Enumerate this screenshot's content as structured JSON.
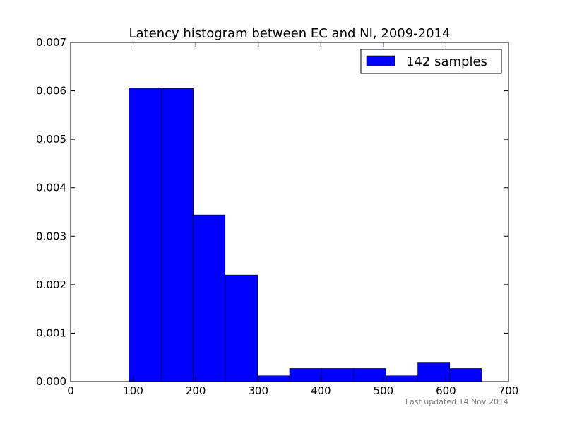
{
  "chart_data": {
    "type": "bar",
    "title": "Latency histogram between EC and NI, 2009-2014",
    "xlabel": "",
    "ylabel": "",
    "xlim": [
      0,
      700
    ],
    "ylim": [
      0,
      0.007
    ],
    "xticks": [
      0,
      100,
      200,
      300,
      400,
      500,
      600,
      700
    ],
    "yticks": [
      0.0,
      0.001,
      0.002,
      0.003,
      0.004,
      0.005,
      0.006,
      0.007
    ],
    "xtick_labels": [
      "0",
      "100",
      "200",
      "300",
      "400",
      "500",
      "600",
      "700"
    ],
    "ytick_labels": [
      "0.000",
      "0.001",
      "0.002",
      "0.003",
      "0.004",
      "0.005",
      "0.006",
      "0.007"
    ],
    "grid": false,
    "legend": {
      "position": "top-right",
      "entries": [
        "142 samples"
      ]
    },
    "bar_color": "#0000ff",
    "bins": [
      {
        "x0": 93,
        "x1": 145,
        "value": 0.00606
      },
      {
        "x0": 145,
        "x1": 196,
        "value": 0.00605
      },
      {
        "x0": 196,
        "x1": 247,
        "value": 0.00344
      },
      {
        "x0": 247,
        "x1": 299,
        "value": 0.0022
      },
      {
        "x0": 299,
        "x1": 350,
        "value": 0.00012
      },
      {
        "x0": 350,
        "x1": 401,
        "value": 0.00027
      },
      {
        "x0": 401,
        "x1": 452,
        "value": 0.00027
      },
      {
        "x0": 452,
        "x1": 504,
        "value": 0.00027
      },
      {
        "x0": 504,
        "x1": 555,
        "value": 0.00012
      },
      {
        "x0": 555,
        "x1": 606,
        "value": 0.0004
      },
      {
        "x0": 606,
        "x1": 657,
        "value": 0.00027
      }
    ]
  },
  "footer": {
    "updated": "Last updated 14 Nov 2014"
  }
}
